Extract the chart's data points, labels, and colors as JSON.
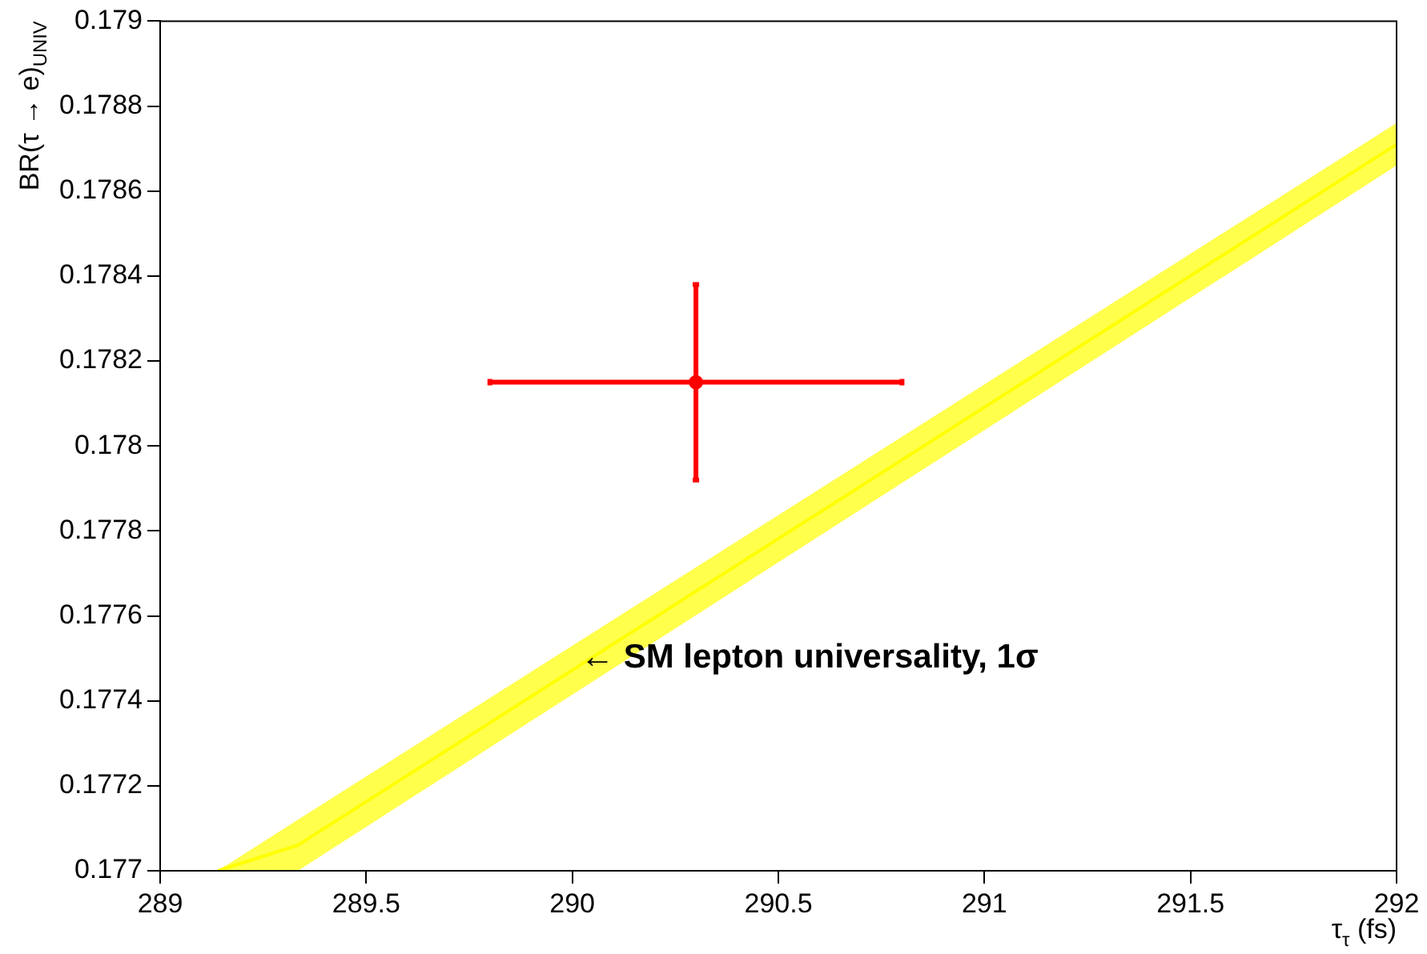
{
  "chart_data": {
    "type": "scatter",
    "xlabel": "τ$_{τ}$ (fs)",
    "ylabel": "BR(τ → e)$_{UNIV}$",
    "xlim": [
      289,
      292
    ],
    "xticks": [
      289,
      289.5,
      290,
      290.5,
      291,
      291.5,
      292
    ],
    "ylim": [
      0.177,
      0.179
    ],
    "yticks": [
      0.177,
      0.1772,
      0.1774,
      0.1776,
      0.1778,
      0.178,
      0.1782,
      0.1784,
      0.1786,
      0.1788,
      0.179
    ],
    "grid": false,
    "legend": false,
    "series": [
      {
        "type": "line",
        "marker": "none",
        "color": "#ffff00",
        "x": [
          289.14,
          289.334,
          292
        ],
        "values": [
          0.177,
          0.17706,
          0.17871
        ],
        "lower": [
          0.177,
          0.177,
          0.17866
        ],
        "upper": [
          0.177,
          0.17712,
          0.17876
        ]
      },
      {
        "type": "scatter",
        "marker": "circle",
        "color": "#ff0000",
        "x": [
          290.3
        ],
        "values": [
          0.17815
        ],
        "errors": [
          0.00023
        ],
        "xerrors": [
          0.5
        ]
      }
    ],
    "annotations": [
      {
        "text": "← SM lepton universality, 1σ",
        "x": 290.02,
        "y": 0.1775
      }
    ]
  }
}
